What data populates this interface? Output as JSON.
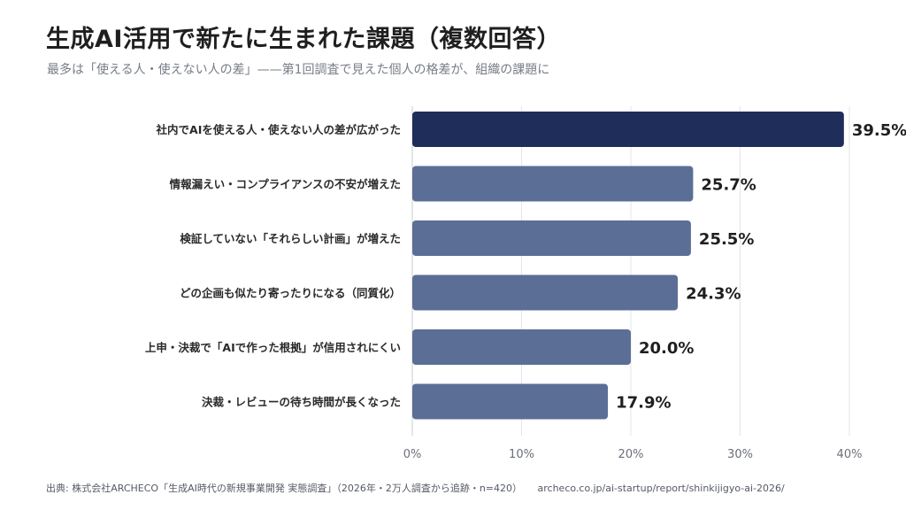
{
  "header": {
    "title": "生成AI活用で新たに生まれた課題（複数回答）",
    "subtitle": "最多は「使える人・使えない人の差」——第1回調査で見えた個人の格差が、組織の課題に"
  },
  "footer": {
    "source": "出典: 株式会社ARCHECO「生成AI時代の新規事業開発 実態調査」（2026年・2万人調査から追跡・n=420）",
    "url": "archeco.co.jp/ai-startup/report/shinkijigyo-ai-2026/"
  },
  "colors": {
    "highlight": "#1e2d5a",
    "bar": "#5b6e96",
    "grid": "#e3e5ea",
    "axis": "#c9ccd3"
  },
  "chart_data": {
    "type": "bar",
    "orientation": "horizontal",
    "categories": [
      "社内でAIを使える人・使えない人の差が広がった",
      "情報漏えい・コンプライアンスの不安が増えた",
      "検証していない「それらしい計画」が増えた",
      "どの企画も似たり寄ったりになる（同質化）",
      "上申・決裁で「AIで作った根拠」が信用されにくい",
      "決裁・レビューの待ち時間が長くなった"
    ],
    "values": [
      39.5,
      25.7,
      25.5,
      24.3,
      20.0,
      17.9
    ],
    "value_labels": [
      "39.5%",
      "25.7%",
      "25.5%",
      "24.3%",
      "20.0%",
      "17.9%"
    ],
    "highlight_index": 0,
    "xlim": [
      0,
      40
    ],
    "xticks": [
      0,
      10,
      20,
      30,
      40
    ],
    "xtick_labels": [
      "0%",
      "10%",
      "20%",
      "30%",
      "40%"
    ],
    "grid": true
  }
}
